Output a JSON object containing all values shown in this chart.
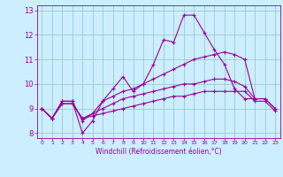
{
  "xlabel": "Windchill (Refroidissement éolien,°C)",
  "x": [
    0,
    1,
    2,
    3,
    4,
    5,
    6,
    7,
    8,
    9,
    10,
    11,
    12,
    13,
    14,
    15,
    16,
    17,
    18,
    19,
    20,
    21,
    22,
    23
  ],
  "line1": [
    9.0,
    8.6,
    9.3,
    9.3,
    8.0,
    8.5,
    9.3,
    9.8,
    10.3,
    9.7,
    10.0,
    10.8,
    11.8,
    11.7,
    12.8,
    12.8,
    12.1,
    11.4,
    10.8,
    9.8,
    9.4,
    9.4,
    null,
    null
  ],
  "line2": [
    9.0,
    8.6,
    9.3,
    9.3,
    8.5,
    8.8,
    9.3,
    9.5,
    9.7,
    9.8,
    10.0,
    10.2,
    10.4,
    10.6,
    10.8,
    11.0,
    11.1,
    11.2,
    11.3,
    11.2,
    11.0,
    9.4,
    9.4,
    9.0
  ],
  "line3": [
    9.0,
    8.6,
    9.2,
    9.2,
    8.6,
    8.8,
    9.0,
    9.2,
    9.4,
    9.5,
    9.6,
    9.7,
    9.8,
    9.9,
    10.0,
    10.0,
    10.1,
    10.2,
    10.2,
    10.1,
    9.9,
    9.4,
    9.4,
    9.0
  ],
  "line4": [
    9.0,
    8.6,
    9.2,
    9.2,
    8.6,
    8.7,
    8.8,
    8.9,
    9.0,
    9.1,
    9.2,
    9.3,
    9.4,
    9.5,
    9.5,
    9.6,
    9.7,
    9.7,
    9.7,
    9.7,
    9.7,
    9.3,
    9.3,
    8.9
  ],
  "line_color": "#990099",
  "bg_color": "#cceeff",
  "grid_color": "#99cccc",
  "ylim": [
    7.8,
    13.2
  ],
  "yticks": [
    8,
    9,
    10,
    11,
    12,
    13
  ],
  "xticks": [
    0,
    1,
    2,
    3,
    4,
    5,
    6,
    7,
    8,
    9,
    10,
    11,
    12,
    13,
    14,
    15,
    16,
    17,
    18,
    19,
    20,
    21,
    22,
    23
  ],
  "marker": "+",
  "markersize": 3,
  "linewidth": 0.8
}
